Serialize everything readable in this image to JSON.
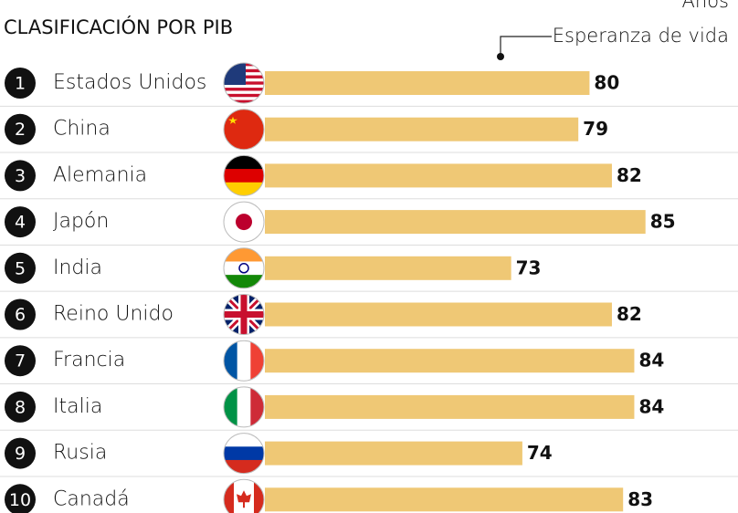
{
  "chart_data": {
    "type": "bar",
    "title": "CLASIFICACIÓN POR PIB",
    "unit_label": "Años",
    "legend_label": "Esperanza de vida",
    "ranks": [
      1,
      2,
      3,
      4,
      5,
      6,
      7,
      8,
      9,
      10
    ],
    "categories": [
      "Estados Unidos",
      "China",
      "Alemania",
      "Japón",
      "India",
      "Reino Unido",
      "Francia",
      "Italia",
      "Rusia",
      "Canadá"
    ],
    "values": [
      80,
      79,
      82,
      85,
      73,
      82,
      84,
      84,
      74,
      83
    ],
    "color": "#efc875",
    "xlim": [
      51,
      90
    ]
  }
}
